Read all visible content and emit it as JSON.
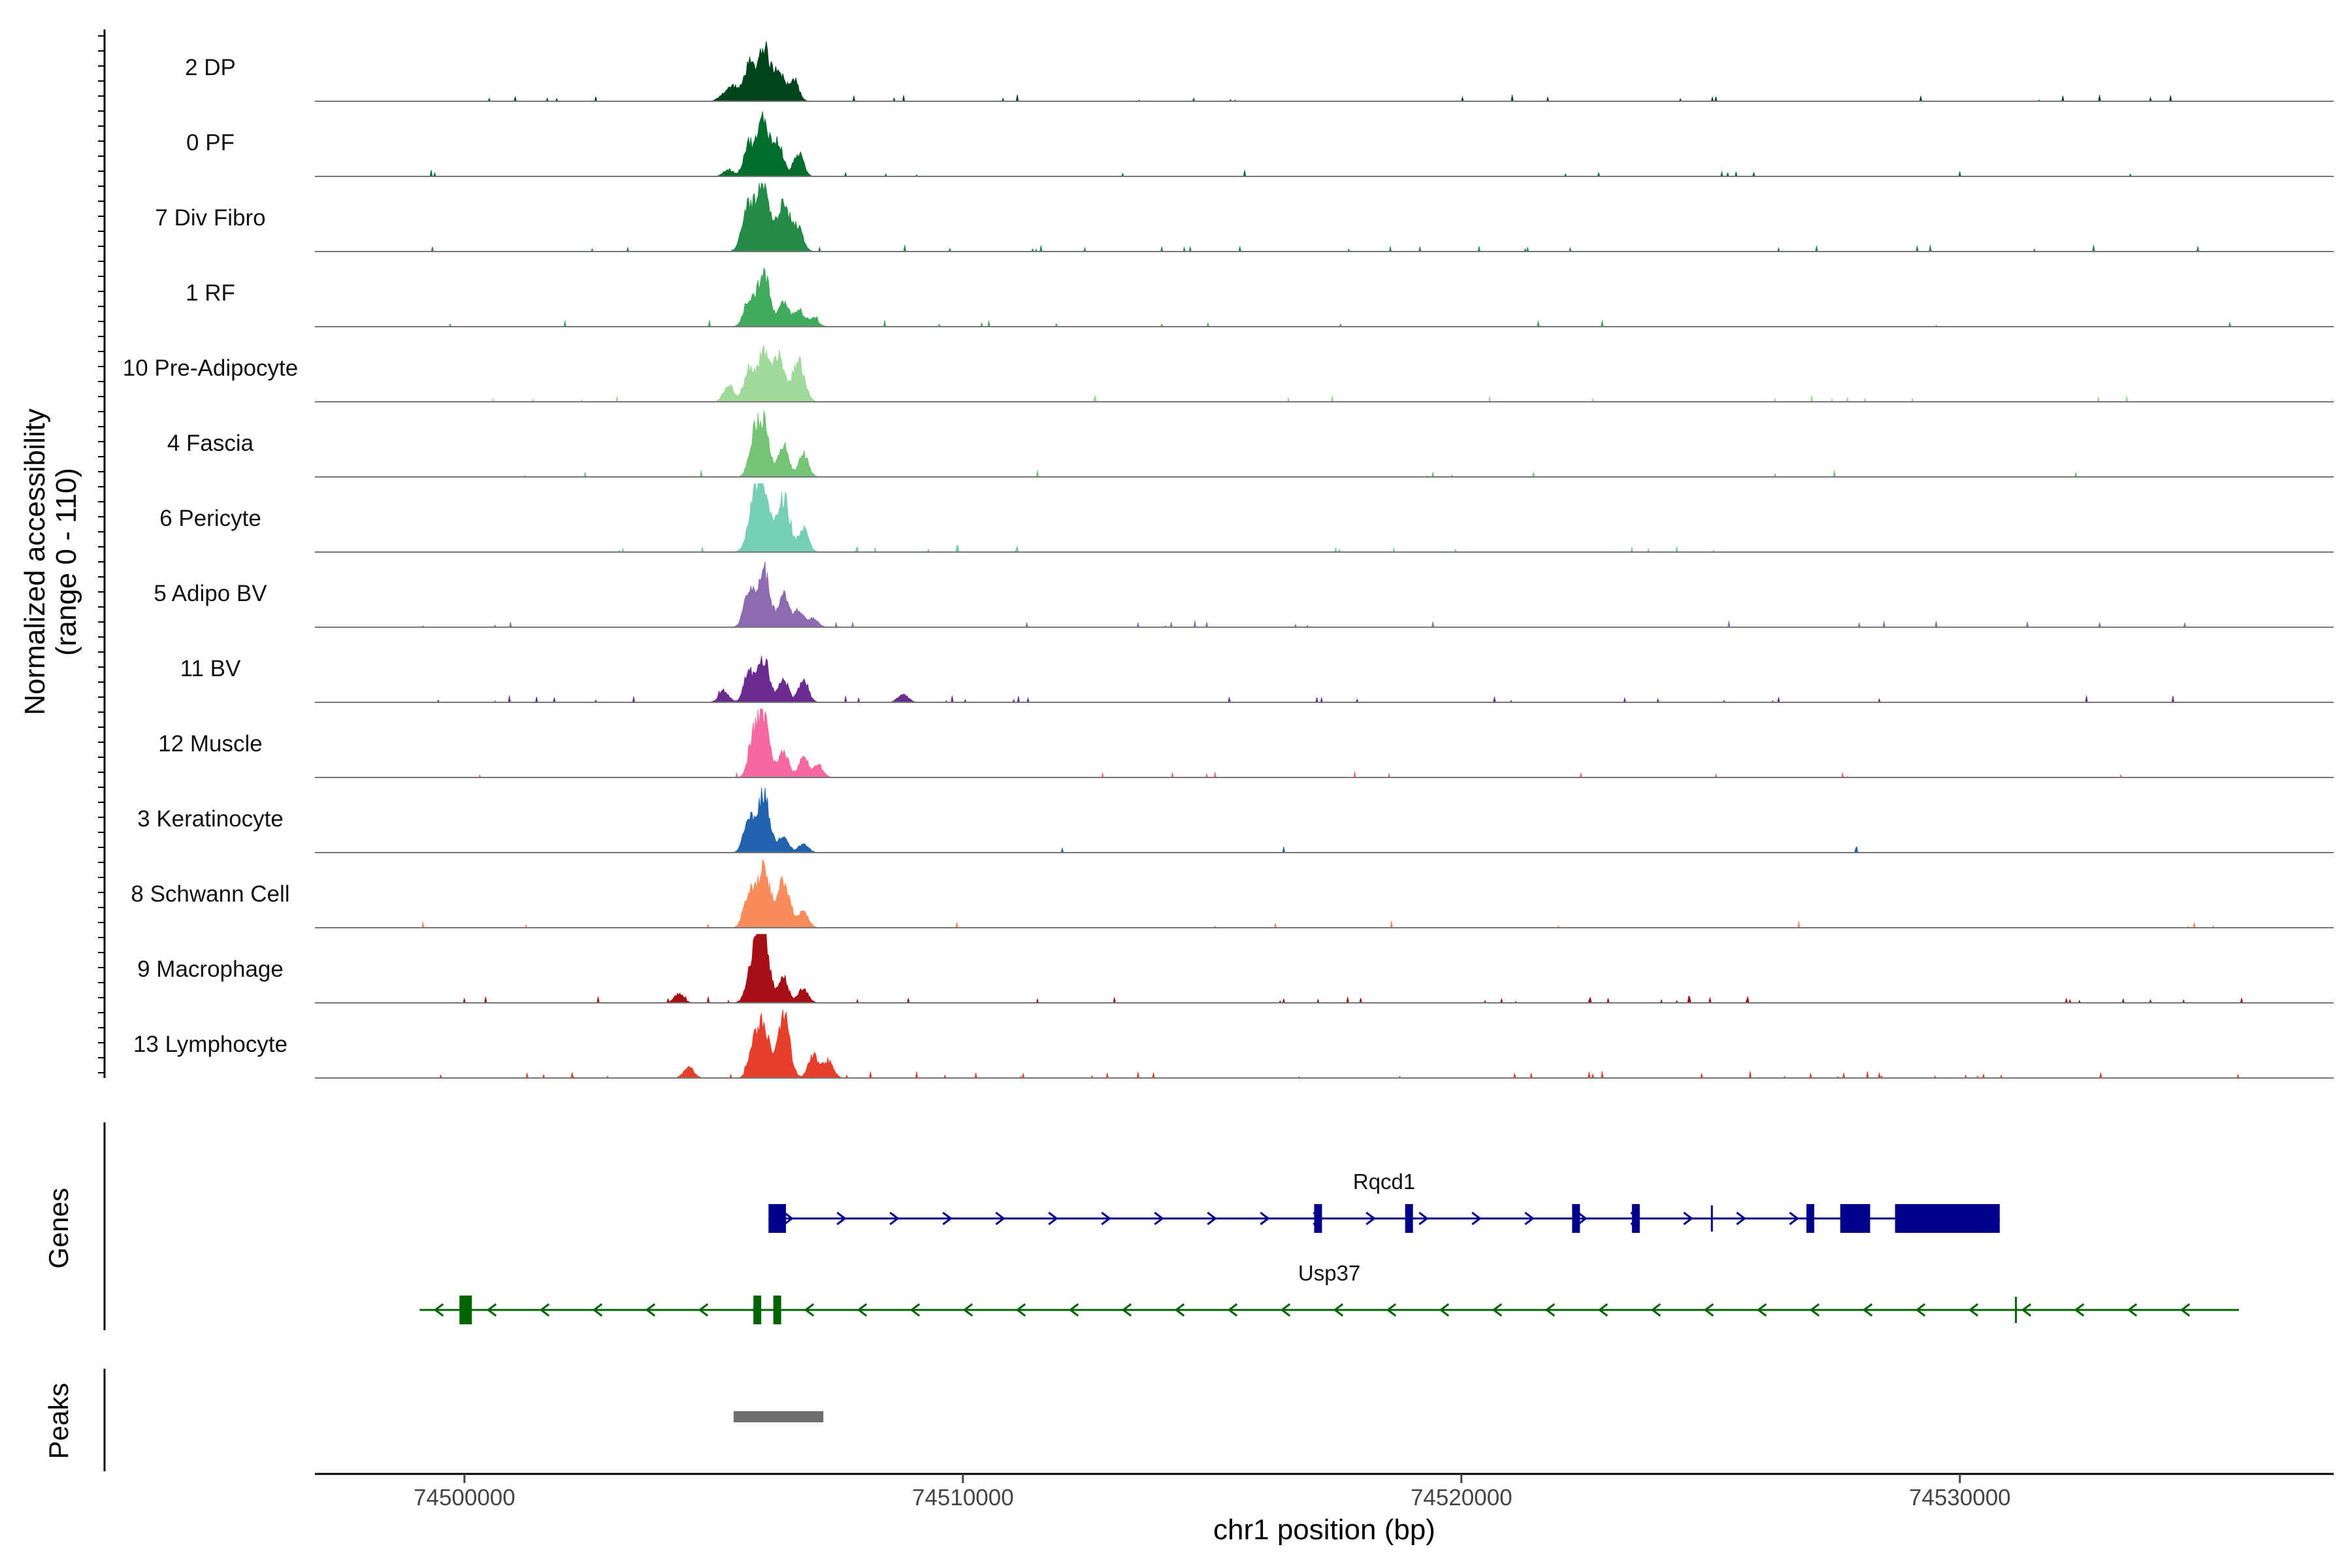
{
  "chart_data": {
    "type": "area",
    "ylabel": [
      "Normalized accessibility",
      "(range 0 - 110)"
    ],
    "ylim": [
      0,
      110
    ],
    "xlabel": "chr1 position (bp)",
    "xlim": [
      74497000,
      74537500
    ],
    "x_ticks": [
      74500000,
      74510000,
      74520000,
      74530000
    ],
    "x_tick_labels": [
      "74500000",
      "74510000",
      "74520000",
      "74530000"
    ],
    "tracks": [
      {
        "name": "2 DP",
        "color": "#00441b",
        "peaks": [
          [
            74506000,
            95
          ],
          [
            74505700,
            60
          ],
          [
            74506300,
            55
          ],
          [
            74506600,
            40
          ],
          [
            74505400,
            25
          ],
          [
            74505200,
            12
          ]
        ],
        "noise": 0.08
      },
      {
        "name": "0 PF",
        "color": "#006d2c",
        "peaks": [
          [
            74506000,
            100
          ],
          [
            74505700,
            55
          ],
          [
            74506300,
            55
          ],
          [
            74506700,
            40
          ],
          [
            74505300,
            12
          ]
        ],
        "noise": 0.04
      },
      {
        "name": "7 Div Fibro",
        "color": "#238b45",
        "peaks": [
          [
            74506000,
            110
          ],
          [
            74505700,
            80
          ],
          [
            74506400,
            90
          ],
          [
            74506700,
            40
          ]
        ],
        "noise": 0.1
      },
      {
        "name": "1 RF",
        "color": "#41ab5d",
        "peaks": [
          [
            74506000,
            95
          ],
          [
            74505700,
            45
          ],
          [
            74506400,
            40
          ],
          [
            74506700,
            30
          ],
          [
            74507000,
            15
          ]
        ],
        "noise": 0.05
      },
      {
        "name": "10 Pre-Adipocyte",
        "color": "#a1d99b",
        "peaks": [
          [
            74506000,
            85
          ],
          [
            74505700,
            55
          ],
          [
            74506300,
            75
          ],
          [
            74506700,
            70
          ],
          [
            74505300,
            30
          ]
        ],
        "noise": 0.07
      },
      {
        "name": "4 Fascia",
        "color": "#74c476",
        "peaks": [
          [
            74506000,
            90
          ],
          [
            74505800,
            60
          ],
          [
            74506400,
            55
          ],
          [
            74506800,
            40
          ]
        ],
        "noise": 0.04
      },
      {
        "name": "6 Pericyte",
        "color": "#76cfb5",
        "peaks": [
          [
            74506000,
            110
          ],
          [
            74505800,
            70
          ],
          [
            74506400,
            95
          ],
          [
            74506800,
            40
          ]
        ],
        "noise": 0.05
      },
      {
        "name": "5 Adipo BV",
        "color": "#8c6bb1",
        "peaks": [
          [
            74506000,
            100
          ],
          [
            74505700,
            60
          ],
          [
            74506400,
            55
          ],
          [
            74506700,
            30
          ],
          [
            74507000,
            15
          ]
        ],
        "noise": 0.06
      },
      {
        "name": "11 BV",
        "color": "#6a2c91",
        "peaks": [
          [
            74506000,
            75
          ],
          [
            74505700,
            50
          ],
          [
            74506400,
            40
          ],
          [
            74506800,
            40
          ],
          [
            74505200,
            20
          ],
          [
            74508800,
            15
          ]
        ],
        "noise": 0.12
      },
      {
        "name": "12 Muscle",
        "color": "#f768a1",
        "peaks": [
          [
            74506000,
            100
          ],
          [
            74505800,
            60
          ],
          [
            74506400,
            45
          ],
          [
            74506800,
            35
          ],
          [
            74507100,
            20
          ]
        ],
        "noise": 0.08
      },
      {
        "name": "3 Keratinocyte",
        "color": "#2161ad",
        "peaks": [
          [
            74506000,
            100
          ],
          [
            74505700,
            55
          ],
          [
            74506400,
            30
          ],
          [
            74506800,
            15
          ]
        ],
        "noise": 0.04
      },
      {
        "name": "8 Schwann Cell",
        "color": "#f98b5c",
        "peaks": [
          [
            74506000,
            110
          ],
          [
            74505700,
            60
          ],
          [
            74506400,
            80
          ],
          [
            74506800,
            30
          ]
        ],
        "noise": 0.05
      },
      {
        "name": "9 Macrophage",
        "color": "#a50f15",
        "peaks": [
          [
            74506000,
            110
          ],
          [
            74505800,
            70
          ],
          [
            74506400,
            45
          ],
          [
            74506800,
            25
          ],
          [
            74504300,
            15
          ]
        ],
        "noise": 0.1
      },
      {
        "name": "13 Lymphocyte",
        "color": "#e6402c",
        "peaks": [
          [
            74506000,
            90
          ],
          [
            74506400,
            110
          ],
          [
            74505800,
            50
          ],
          [
            74507000,
            40
          ],
          [
            74507300,
            30
          ],
          [
            74504500,
            20
          ]
        ],
        "noise": 0.14
      }
    ],
    "genes_label": "Genes",
    "genes": [
      {
        "name": "Rqcd1",
        "strand": "+",
        "color": "#00008b",
        "start": 74506100,
        "end": 74530800,
        "exons": [
          [
            74506100,
            74506450,
            "thick"
          ],
          [
            74517050,
            74517200,
            "thin"
          ],
          [
            74518900,
            74519000,
            "thin"
          ],
          [
            74522250,
            74522350,
            "thin"
          ],
          [
            74523450,
            74523550,
            "thin"
          ],
          [
            74525000,
            74525050,
            "tick"
          ],
          [
            74526950,
            74527050,
            "thin"
          ],
          [
            74527600,
            74528200,
            "thick"
          ],
          [
            74528700,
            74530800,
            "thick"
          ]
        ]
      },
      {
        "name": "Usp37",
        "strand": "-",
        "color": "#006400",
        "start": 74499100,
        "end": 74535600,
        "exons": [
          [
            74499900,
            74500150,
            "thick"
          ],
          [
            74505800,
            74505950,
            "thin"
          ],
          [
            74506200,
            74506350,
            "thin"
          ],
          [
            74531100,
            74531150,
            "tick"
          ]
        ]
      }
    ],
    "peaks_label": "Peaks",
    "peak_regions": [
      [
        74505400,
        74507200
      ]
    ],
    "peak_color": "#6e6e6e"
  }
}
